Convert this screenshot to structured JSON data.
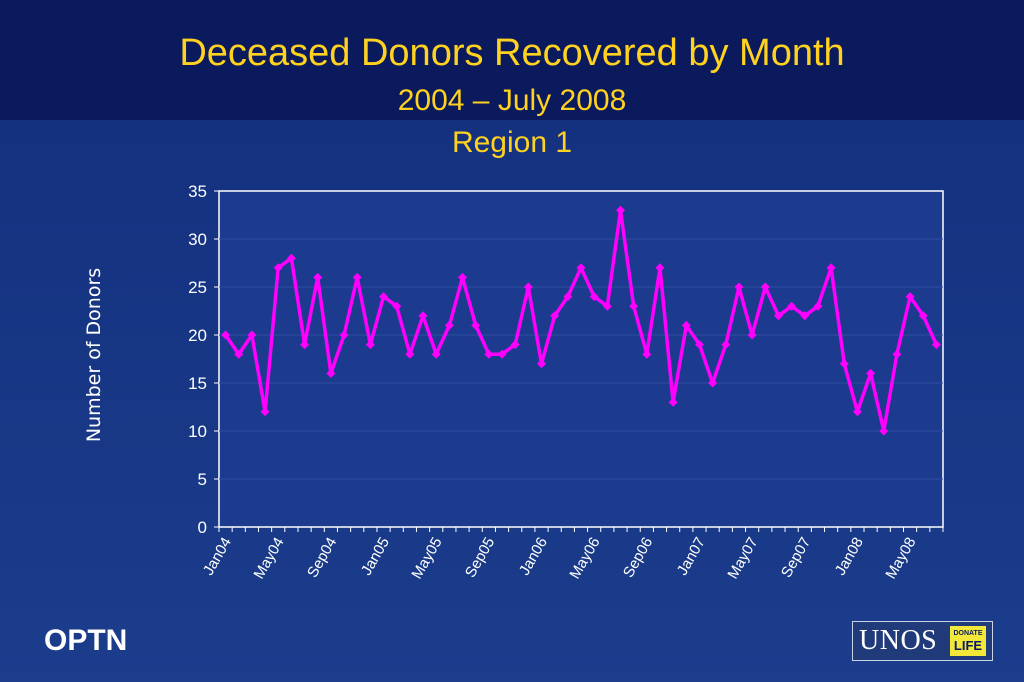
{
  "slide": {
    "title": "Deceased Donors Recovered by Month",
    "subtitle": "2004 – July 2008",
    "region": "Region 1",
    "footer_left": "OPTN",
    "logo_text": "UNOS",
    "logo_badge_top": "DONATE",
    "logo_badge_bottom": "LIFE"
  },
  "colors": {
    "series": "#ff00ff",
    "title": "#ffd21f",
    "plot_background": "#1c3a8e",
    "axis": "#ffffff"
  },
  "chart_data": {
    "type": "line",
    "ylabel": "Number of Donors",
    "xlabel": "",
    "ylim": [
      0,
      35
    ],
    "yticks": [
      0,
      5,
      10,
      15,
      20,
      25,
      30,
      35
    ],
    "grid": "horizontal",
    "xtick_labels": [
      "Jan04",
      "May04",
      "Sep04",
      "Jan05",
      "May05",
      "Sep05",
      "Jan06",
      "May06",
      "Sep06",
      "Jan07",
      "May07",
      "Sep07",
      "Jan08",
      "May08"
    ],
    "x": [
      "Jan04",
      "Feb04",
      "Mar04",
      "Apr04",
      "May04",
      "Jun04",
      "Jul04",
      "Aug04",
      "Sep04",
      "Oct04",
      "Nov04",
      "Dec04",
      "Jan05",
      "Feb05",
      "Mar05",
      "Apr05",
      "May05",
      "Jun05",
      "Jul05",
      "Aug05",
      "Sep05",
      "Oct05",
      "Nov05",
      "Dec05",
      "Jan06",
      "Feb06",
      "Mar06",
      "Apr06",
      "May06",
      "Jun06",
      "Jul06",
      "Aug06",
      "Sep06",
      "Oct06",
      "Nov06",
      "Dec06",
      "Jan07",
      "Feb07",
      "Mar07",
      "Apr07",
      "May07",
      "Jun07",
      "Jul07",
      "Aug07",
      "Sep07",
      "Oct07",
      "Nov07",
      "Dec07",
      "Jan08",
      "Feb08",
      "Mar08",
      "Apr08",
      "May08",
      "Jun08",
      "Jul08"
    ],
    "series": [
      {
        "values": [
          20,
          18,
          20,
          12,
          27,
          28,
          19,
          26,
          16,
          20,
          26,
          19,
          24,
          23,
          18,
          22,
          18,
          21,
          26,
          21,
          18,
          18,
          19,
          25,
          17,
          22,
          24,
          27,
          24,
          23,
          33,
          23,
          18,
          27,
          13,
          21,
          19,
          15,
          19,
          25,
          20,
          25,
          22,
          23,
          22,
          23,
          27,
          17,
          12,
          16,
          10,
          18,
          24,
          22,
          19
        ]
      }
    ]
  }
}
